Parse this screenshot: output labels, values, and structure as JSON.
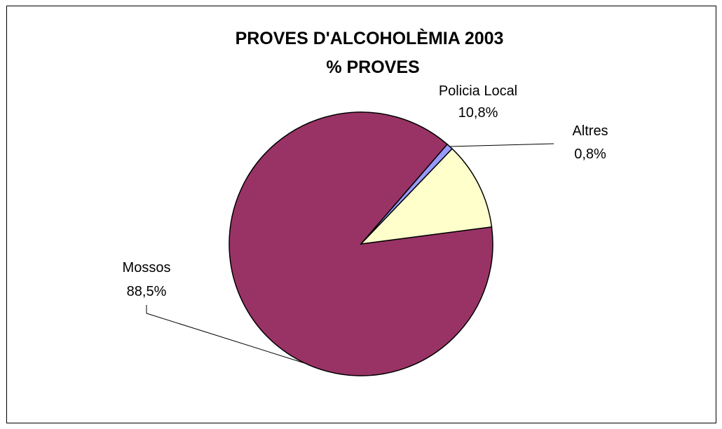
{
  "chart_data": {
    "type": "pie",
    "title": "PROVES D'ALCOHOLÈMIA 2003",
    "subtitle": "% PROVES",
    "slices": [
      {
        "label": "Mossos",
        "value": 88.5,
        "value_label": "88,5%",
        "color": "#993366"
      },
      {
        "label": "Policia Local",
        "value": 10.8,
        "value_label": "10,8%",
        "color": "#FFFFCC"
      },
      {
        "label": "Altres",
        "value": 0.8,
        "value_label": "0,8%",
        "color": "#9999FF"
      }
    ],
    "legend": "none"
  }
}
